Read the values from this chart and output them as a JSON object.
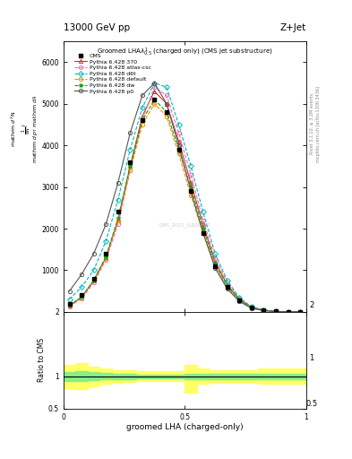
{
  "title_top": "13000 GeV pp",
  "title_right": "Z+Jet",
  "plot_title": "Groomed LHA$\\lambda^1_{0.5}$ (charged only) (CMS jet substructure)",
  "xlabel": "groomed LHA (charged-only)",
  "ylabel_ratio": "Ratio to CMS",
  "watermark": "CMS_2021_I1920187",
  "right_label1": "Rivet 3.1.10, ≥ 3.2M events",
  "right_label2": "mcplots.cern.ch [arXiv:1306.3436]",
  "x": [
    0.025,
    0.075,
    0.125,
    0.175,
    0.225,
    0.275,
    0.325,
    0.375,
    0.425,
    0.475,
    0.525,
    0.575,
    0.625,
    0.675,
    0.725,
    0.775,
    0.825,
    0.875,
    0.925,
    0.975
  ],
  "cms_y": [
    200,
    400,
    800,
    1400,
    2400,
    3600,
    4600,
    5100,
    4800,
    3900,
    2900,
    1900,
    1100,
    600,
    280,
    100,
    40,
    10,
    2,
    0
  ],
  "p370_y": [
    150,
    350,
    750,
    1300,
    2200,
    3500,
    4700,
    5300,
    5000,
    4100,
    3100,
    2100,
    1200,
    650,
    300,
    110,
    40,
    10,
    2,
    0
  ],
  "atlas_csc_y": [
    130,
    320,
    700,
    1250,
    2100,
    3400,
    4600,
    5400,
    5200,
    4300,
    3300,
    2200,
    1300,
    700,
    320,
    115,
    42,
    11,
    2,
    0
  ],
  "d6t_y": [
    300,
    600,
    1000,
    1700,
    2700,
    3900,
    4900,
    5500,
    5400,
    4500,
    3500,
    2400,
    1400,
    750,
    340,
    120,
    45,
    11,
    2,
    0
  ],
  "default_y": [
    150,
    350,
    750,
    1300,
    2200,
    3400,
    4500,
    5000,
    4700,
    3800,
    2800,
    1900,
    1100,
    580,
    270,
    95,
    35,
    9,
    2,
    0
  ],
  "dw_y": [
    150,
    360,
    760,
    1320,
    2250,
    3500,
    4600,
    5100,
    4800,
    3900,
    3000,
    2000,
    1150,
    620,
    285,
    100,
    37,
    9,
    2,
    0
  ],
  "p0_y": [
    500,
    900,
    1400,
    2100,
    3100,
    4300,
    5200,
    5500,
    5000,
    4000,
    2900,
    1900,
    1050,
    550,
    250,
    85,
    30,
    7,
    1,
    0
  ],
  "ratio_x": [
    0.0,
    0.05,
    0.1,
    0.15,
    0.2,
    0.25,
    0.3,
    0.35,
    0.4,
    0.45,
    0.5,
    0.55,
    0.6,
    0.65,
    0.7,
    0.75,
    0.8,
    0.85,
    0.9,
    0.95,
    1.0
  ],
  "ratio_green_upper": [
    1.07,
    1.08,
    1.06,
    1.05,
    1.04,
    1.04,
    1.03,
    1.03,
    1.03,
    1.03,
    1.04,
    1.04,
    1.04,
    1.04,
    1.04,
    1.04,
    1.04,
    1.04,
    1.04,
    1.04,
    1.04
  ],
  "ratio_green_lower": [
    0.93,
    0.92,
    0.94,
    0.95,
    0.96,
    0.96,
    0.97,
    0.97,
    0.97,
    0.97,
    0.96,
    0.96,
    0.96,
    0.96,
    0.96,
    0.96,
    0.96,
    0.96,
    0.96,
    0.96,
    0.96
  ],
  "ratio_yellow_upper": [
    1.18,
    1.2,
    1.15,
    1.12,
    1.1,
    1.09,
    1.08,
    1.08,
    1.08,
    1.08,
    1.18,
    1.12,
    1.1,
    1.1,
    1.1,
    1.1,
    1.12,
    1.12,
    1.12,
    1.12,
    1.12
  ],
  "ratio_yellow_lower": [
    0.82,
    0.8,
    0.85,
    0.88,
    0.9,
    0.91,
    0.92,
    0.92,
    0.92,
    0.92,
    0.75,
    0.88,
    0.9,
    0.9,
    0.9,
    0.9,
    0.88,
    0.88,
    0.88,
    0.88,
    0.88
  ],
  "color_p370": "#cc3333",
  "color_atlas_csc": "#ff66aa",
  "color_d6t": "#00bbbb",
  "color_default": "#ff8800",
  "color_dw": "#00aa00",
  "color_p0": "#555555",
  "color_cms": "#000000",
  "ylim_main": [
    0,
    6500
  ],
  "yticks_main": [
    1000,
    2000,
    3000,
    4000,
    5000,
    6000
  ],
  "ylim_ratio": [
    0.5,
    2.0
  ],
  "xlim": [
    0,
    1
  ]
}
